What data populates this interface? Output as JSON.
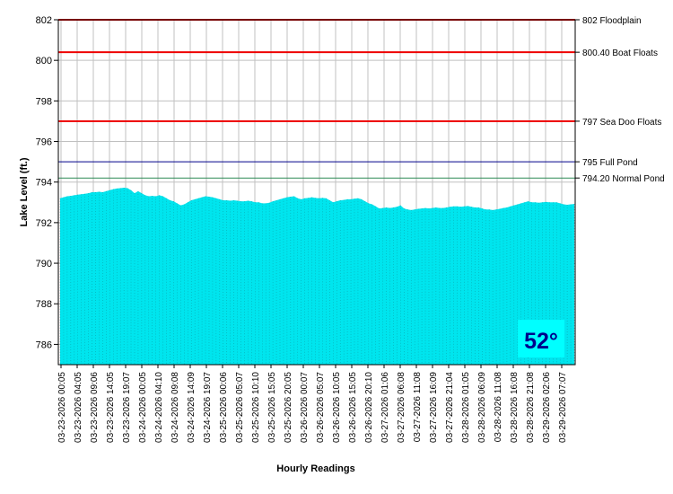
{
  "chart_data": {
    "type": "area",
    "title": "",
    "xlabel": "Hourly Readings",
    "ylabel": "Lake Level (ft.)",
    "ylim": [
      785,
      802
    ],
    "yticks": [
      786,
      788,
      790,
      792,
      794,
      796,
      798,
      800,
      802
    ],
    "grid": true,
    "x_tick_labels": [
      "03-23-2026 00:05",
      "03-23-2026 04:05",
      "03-23-2026 09:06",
      "03-23-2026 14:05",
      "03-23-2026 19:07",
      "03-24-2026 00:05",
      "03-24-2026 04:10",
      "03-24-2026 09:08",
      "03-24-2026 14:09",
      "03-24-2026 19:07",
      "03-25-2026 00:06",
      "03-25-2026 05:07",
      "03-25-2026 10:10",
      "03-25-2026 15:05",
      "03-25-2026 20:05",
      "03-26-2026 00:07",
      "03-26-2026 05:07",
      "03-26-2026 10:05",
      "03-26-2026 15:05",
      "03-26-2026 20:10",
      "03-27-2026 01:06",
      "03-27-2026 06:08",
      "03-27-2026 11:08",
      "03-27-2026 16:09",
      "03-27-2026 21:04",
      "03-28-2026 01:05",
      "03-28-2026 06:09",
      "03-28-2026 11:08",
      "03-28-2026 16:08",
      "03-28-2026 21:08",
      "03-29-2026 02:06",
      "03-29-2026 07:07"
    ],
    "series": [
      {
        "color": "#00e5ee",
        "values": [
          793.2,
          793.25,
          793.3,
          793.32,
          793.35,
          793.38,
          793.4,
          793.42,
          793.45,
          793.5,
          793.5,
          793.52,
          793.5,
          793.55,
          793.6,
          793.65,
          793.68,
          793.7,
          793.72,
          793.7,
          793.6,
          793.45,
          793.55,
          793.45,
          793.35,
          793.3,
          793.32,
          793.3,
          793.35,
          793.3,
          793.2,
          793.1,
          793.05,
          792.95,
          792.85,
          792.9,
          793.0,
          793.1,
          793.15,
          793.2,
          793.25,
          793.3,
          793.28,
          793.25,
          793.2,
          793.15,
          793.1,
          793.1,
          793.08,
          793.1,
          793.08,
          793.05,
          793.05,
          793.08,
          793.05,
          793.0,
          793.0,
          792.95,
          792.95,
          792.98,
          793.05,
          793.1,
          793.15,
          793.2,
          793.25,
          793.28,
          793.3,
          793.2,
          793.15,
          793.2,
          793.22,
          793.25,
          793.22,
          793.2,
          793.22,
          793.2,
          793.1,
          793.0,
          793.05,
          793.1,
          793.12,
          793.15,
          793.15,
          793.18,
          793.2,
          793.15,
          793.05,
          792.95,
          792.9,
          792.8,
          792.7,
          792.72,
          792.75,
          792.72,
          792.75,
          792.78,
          792.85,
          792.7,
          792.65,
          792.62,
          792.65,
          792.68,
          792.7,
          792.72,
          792.7,
          792.72,
          792.75,
          792.72,
          792.72,
          792.75,
          792.78,
          792.8,
          792.8,
          792.78,
          792.8,
          792.82,
          792.78,
          792.75,
          792.75,
          792.7,
          792.65,
          792.65,
          792.62,
          792.65,
          792.68,
          792.72,
          792.75,
          792.8,
          792.85,
          792.9,
          792.95,
          793.0,
          793.05,
          793.0,
          793.0,
          792.98,
          793.0,
          793.02,
          793.0,
          793.0,
          793.0,
          792.95,
          792.9,
          792.88,
          792.9,
          792.92
        ]
      }
    ],
    "reference_lines": [
      {
        "value": 802,
        "label": "802 Floodplain",
        "color": "#ee0000"
      },
      {
        "value": 800.4,
        "label": "800.40 Boat Floats",
        "color": "#ee0000"
      },
      {
        "value": 797,
        "label": "797 Sea Doo Floats",
        "color": "#ee0000"
      },
      {
        "value": 795,
        "label": "795 Full Pond",
        "color": "#00008b"
      },
      {
        "value": 794.2,
        "label": "794.20 Normal Pond",
        "color": "#2e8b57"
      }
    ]
  },
  "temperature": {
    "value": "52°",
    "bg_color": "#00ffff",
    "text_color": "#00008b"
  }
}
